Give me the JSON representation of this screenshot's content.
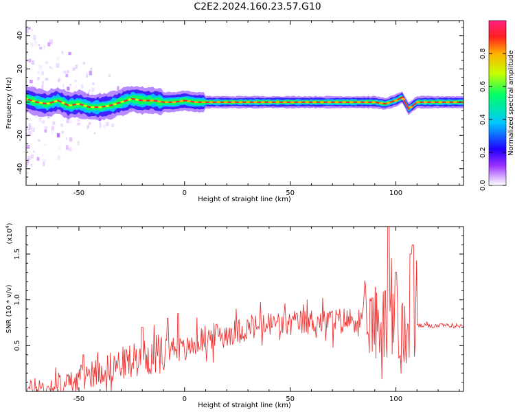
{
  "title": "C2E2.2024.160.23.57.G10",
  "chart_data": [
    {
      "type": "heatmap",
      "xlabel": "Height of straight line (km)",
      "ylabel": "Frequency (Hz)",
      "xlim": [
        -75,
        132
      ],
      "ylim": [
        -50,
        49
      ],
      "x_ticks": [
        -50,
        0,
        50,
        100
      ],
      "y_ticks": [
        -40,
        -20,
        0,
        20,
        40
      ],
      "colorbar": {
        "label": "Normalized spectral amplitude",
        "range": [
          0,
          1
        ],
        "ticks": [
          "0.0",
          "0.2",
          "0.4",
          "0.6",
          "0.8"
        ],
        "colors": [
          "#ffffff",
          "#e0c0ff",
          "#9b30ff",
          "#2000ff",
          "#00c8ff",
          "#00ff66",
          "#c8ff00",
          "#ffb000",
          "#ff2020",
          "#ff2080"
        ]
      },
      "ridge": {
        "x": [
          -75,
          -70,
          -65,
          -60,
          -55,
          -50,
          -45,
          -40,
          -35,
          -30,
          -25,
          -20,
          -15,
          -10,
          -5,
          0,
          5,
          10,
          20,
          40,
          60,
          80,
          90,
          95,
          100,
          103,
          106,
          108,
          110,
          120,
          132
        ],
        "y": [
          2,
          0,
          -1,
          1,
          -2,
          -1,
          -3,
          -3,
          -2,
          0,
          2,
          1,
          1,
          0,
          0,
          1,
          0,
          0,
          0,
          0,
          0,
          0,
          0,
          -1,
          1,
          3,
          -4,
          -2,
          0,
          0,
          0
        ]
      },
      "scatter_x_range": [
        -75,
        -15
      ],
      "grid": false
    },
    {
      "type": "line",
      "xlabel": "Height of straight line (km)",
      "ylabel": "SNR (10 * v/v)",
      "y_scale_label": "(x10",
      "y_scale_exp": "4",
      "xlim": [
        -75,
        132
      ],
      "ylim": [
        0,
        1.8
      ],
      "x_ticks": [
        -50,
        0,
        50,
        100
      ],
      "y_ticks": [
        0.5,
        1.0,
        1.5
      ],
      "series": [
        {
          "color": "#ee3333",
          "x": [
            -75,
            -65,
            -55,
            -50,
            -45,
            -40,
            -35,
            -30,
            -25,
            -20,
            -15,
            -10,
            -5,
            0,
            5,
            10,
            20,
            30,
            40,
            50,
            60,
            70,
            80,
            90,
            95,
            100,
            105,
            108,
            110,
            120,
            132
          ],
          "y": [
            0.03,
            0.05,
            0.1,
            0.15,
            0.2,
            0.25,
            0.28,
            0.32,
            0.36,
            0.38,
            0.42,
            0.45,
            0.5,
            0.45,
            0.55,
            0.6,
            0.65,
            0.7,
            0.75,
            0.75,
            0.78,
            0.78,
            0.8,
            0.8,
            0.8,
            0.75,
            0.7,
            0.7,
            0.72,
            0.72,
            0.72
          ]
        }
      ],
      "spikes": [
        [
          -48,
          0.4
        ],
        [
          -20,
          0.7
        ],
        [
          -8,
          0.8
        ],
        [
          -3,
          0.85
        ],
        [
          95,
          1.1
        ],
        [
          96.5,
          1.8
        ],
        [
          100,
          1.3
        ],
        [
          107,
          1.5
        ],
        [
          108,
          1.6
        ]
      ],
      "grid": false
    }
  ]
}
